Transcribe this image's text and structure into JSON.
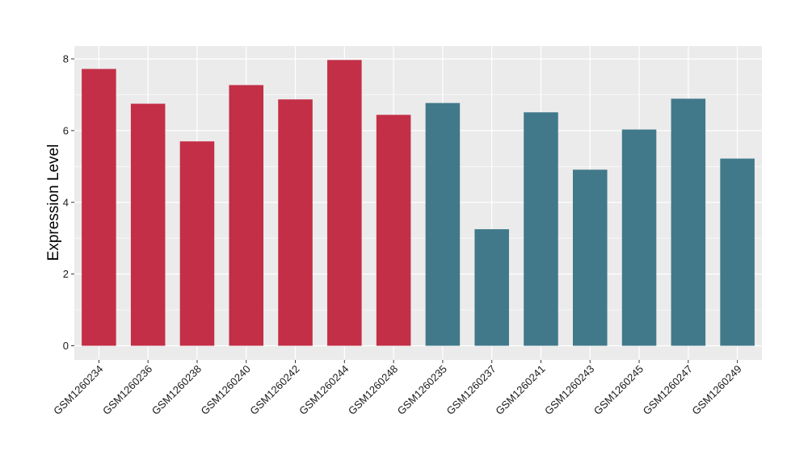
{
  "chart_data": {
    "type": "bar",
    "title": "",
    "xlabel": "",
    "ylabel": "Expression Level",
    "ylim": [
      0,
      8.2
    ],
    "yticks": [
      0,
      2,
      4,
      6,
      8
    ],
    "grid": true,
    "legend": "none",
    "colors": {
      "group_a": "#C32F47",
      "group_b": "#41798A",
      "panel": "#EBEBEB",
      "gridline": "#FFFFFF"
    },
    "categories": [
      "GSM1260234",
      "GSM1260236",
      "GSM1260238",
      "GSM1260240",
      "GSM1260242",
      "GSM1260244",
      "GSM1260248",
      "GSM1260235",
      "GSM1260237",
      "GSM1260241",
      "GSM1260243",
      "GSM1260245",
      "GSM1260247",
      "GSM1260249"
    ],
    "values": [
      7.72,
      6.75,
      5.7,
      7.27,
      6.87,
      7.97,
      6.44,
      6.77,
      3.25,
      6.51,
      4.91,
      6.03,
      6.89,
      5.22
    ],
    "groups": [
      "a",
      "a",
      "a",
      "a",
      "a",
      "a",
      "a",
      "b",
      "b",
      "b",
      "b",
      "b",
      "b",
      "b"
    ]
  }
}
